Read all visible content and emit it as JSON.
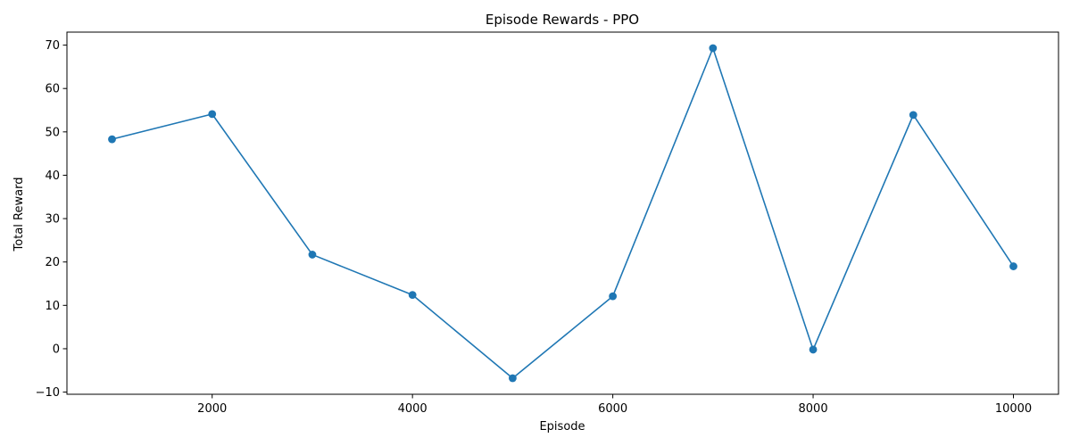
{
  "chart_data": {
    "type": "line",
    "title": "Episode Rewards - PPO",
    "xlabel": "Episode",
    "ylabel": "Total Reward",
    "xlim": [
      550,
      10450
    ],
    "ylim": [
      -10.5,
      73.0
    ],
    "xticks": [
      2000,
      4000,
      6000,
      8000,
      10000
    ],
    "xtick_labels": [
      "2000",
      "4000",
      "6000",
      "8000",
      "10000"
    ],
    "yticks": [
      -10,
      0,
      10,
      20,
      30,
      40,
      50,
      60,
      70
    ],
    "ytick_labels": [
      "−10",
      "0",
      "10",
      "20",
      "30",
      "40",
      "50",
      "60",
      "70"
    ],
    "grid": false,
    "series": [
      {
        "name": "PPO",
        "color": "#1f77b4",
        "marker": "circle",
        "x": [
          1000,
          2000,
          3000,
          4000,
          5000,
          6000,
          7000,
          8000,
          9000,
          10000
        ],
        "y": [
          48.3,
          54.1,
          21.7,
          12.4,
          -6.8,
          12.1,
          69.3,
          -0.2,
          53.9,
          19.0
        ]
      }
    ]
  }
}
